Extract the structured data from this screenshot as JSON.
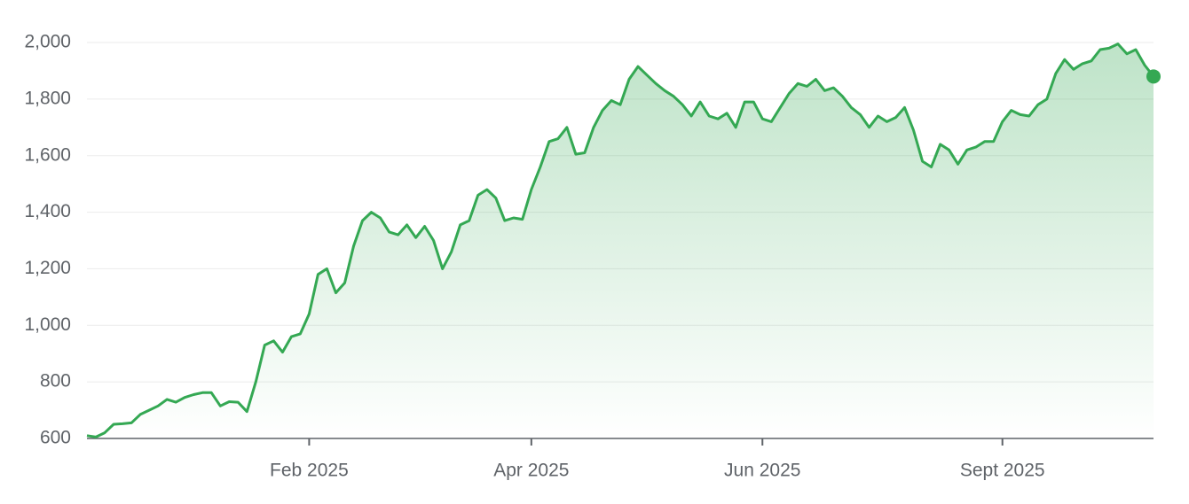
{
  "chart_data": {
    "type": "line",
    "categories": [
      null,
      null,
      null,
      null,
      null,
      null,
      null,
      null,
      null,
      null,
      null,
      null,
      null,
      null,
      null,
      null,
      null,
      null,
      null,
      null,
      null,
      null,
      null,
      null,
      null,
      "Feb 2025",
      null,
      null,
      null,
      null,
      null,
      null,
      null,
      null,
      null,
      null,
      null,
      null,
      null,
      null,
      null,
      null,
      null,
      null,
      null,
      null,
      null,
      null,
      null,
      null,
      "Apr 2025",
      null,
      null,
      null,
      null,
      null,
      null,
      null,
      null,
      null,
      null,
      null,
      null,
      null,
      null,
      null,
      null,
      null,
      null,
      null,
      null,
      null,
      null,
      null,
      null,
      null,
      "Jun 2025",
      null,
      null,
      null,
      null,
      null,
      null,
      null,
      null,
      null,
      null,
      null,
      null,
      null,
      null,
      null,
      null,
      null,
      null,
      null,
      null,
      null,
      null,
      null,
      null,
      null,
      null,
      "Sept 2025",
      null,
      null,
      null,
      null,
      null,
      null,
      null,
      null,
      null,
      null,
      null,
      null,
      null,
      null,
      null,
      null,
      null
    ],
    "series": [
      {
        "color": "#34a853",
        "values": [
          610,
          605,
          620,
          650,
          652,
          655,
          685,
          700,
          715,
          738,
          728,
          745,
          755,
          762,
          762,
          715,
          730,
          728,
          695,
          800,
          930,
          945,
          905,
          960,
          970,
          1040,
          1180,
          1200,
          1115,
          1150,
          1280,
          1370,
          1400,
          1380,
          1330,
          1320,
          1355,
          1310,
          1350,
          1300,
          1200,
          1260,
          1355,
          1370,
          1460,
          1480,
          1450,
          1370,
          1380,
          1375,
          1480,
          1560,
          1650,
          1660,
          1700,
          1605,
          1610,
          1700,
          1760,
          1795,
          1780,
          1870,
          1915,
          1885,
          1855,
          1830,
          1810,
          1780,
          1740,
          1790,
          1740,
          1730,
          1750,
          1700,
          1790,
          1790,
          1730,
          1720,
          1770,
          1820,
          1855,
          1845,
          1870,
          1830,
          1840,
          1810,
          1770,
          1745,
          1700,
          1740,
          1720,
          1735,
          1770,
          1690,
          1580,
          1560,
          1640,
          1620,
          1570,
          1620,
          1630,
          1650,
          1650,
          1720,
          1760,
          1745,
          1740,
          1780,
          1800,
          1890,
          1940,
          1905,
          1925,
          1935,
          1975,
          1980,
          1995,
          1960,
          1975,
          1920,
          1880
        ]
      }
    ],
    "ylim": [
      600,
      2000
    ],
    "yticks": [
      600,
      800,
      {
        "value": 1000,
        "label": "1,000"
      },
      {
        "value": 1200,
        "label": "1,200"
      },
      {
        "value": 1400,
        "label": "1,400"
      },
      {
        "value": 1600,
        "label": "1,600"
      },
      {
        "value": 1800,
        "label": "1,800"
      },
      {
        "value": 2000,
        "label": "2,000"
      }
    ],
    "grid": true
  }
}
